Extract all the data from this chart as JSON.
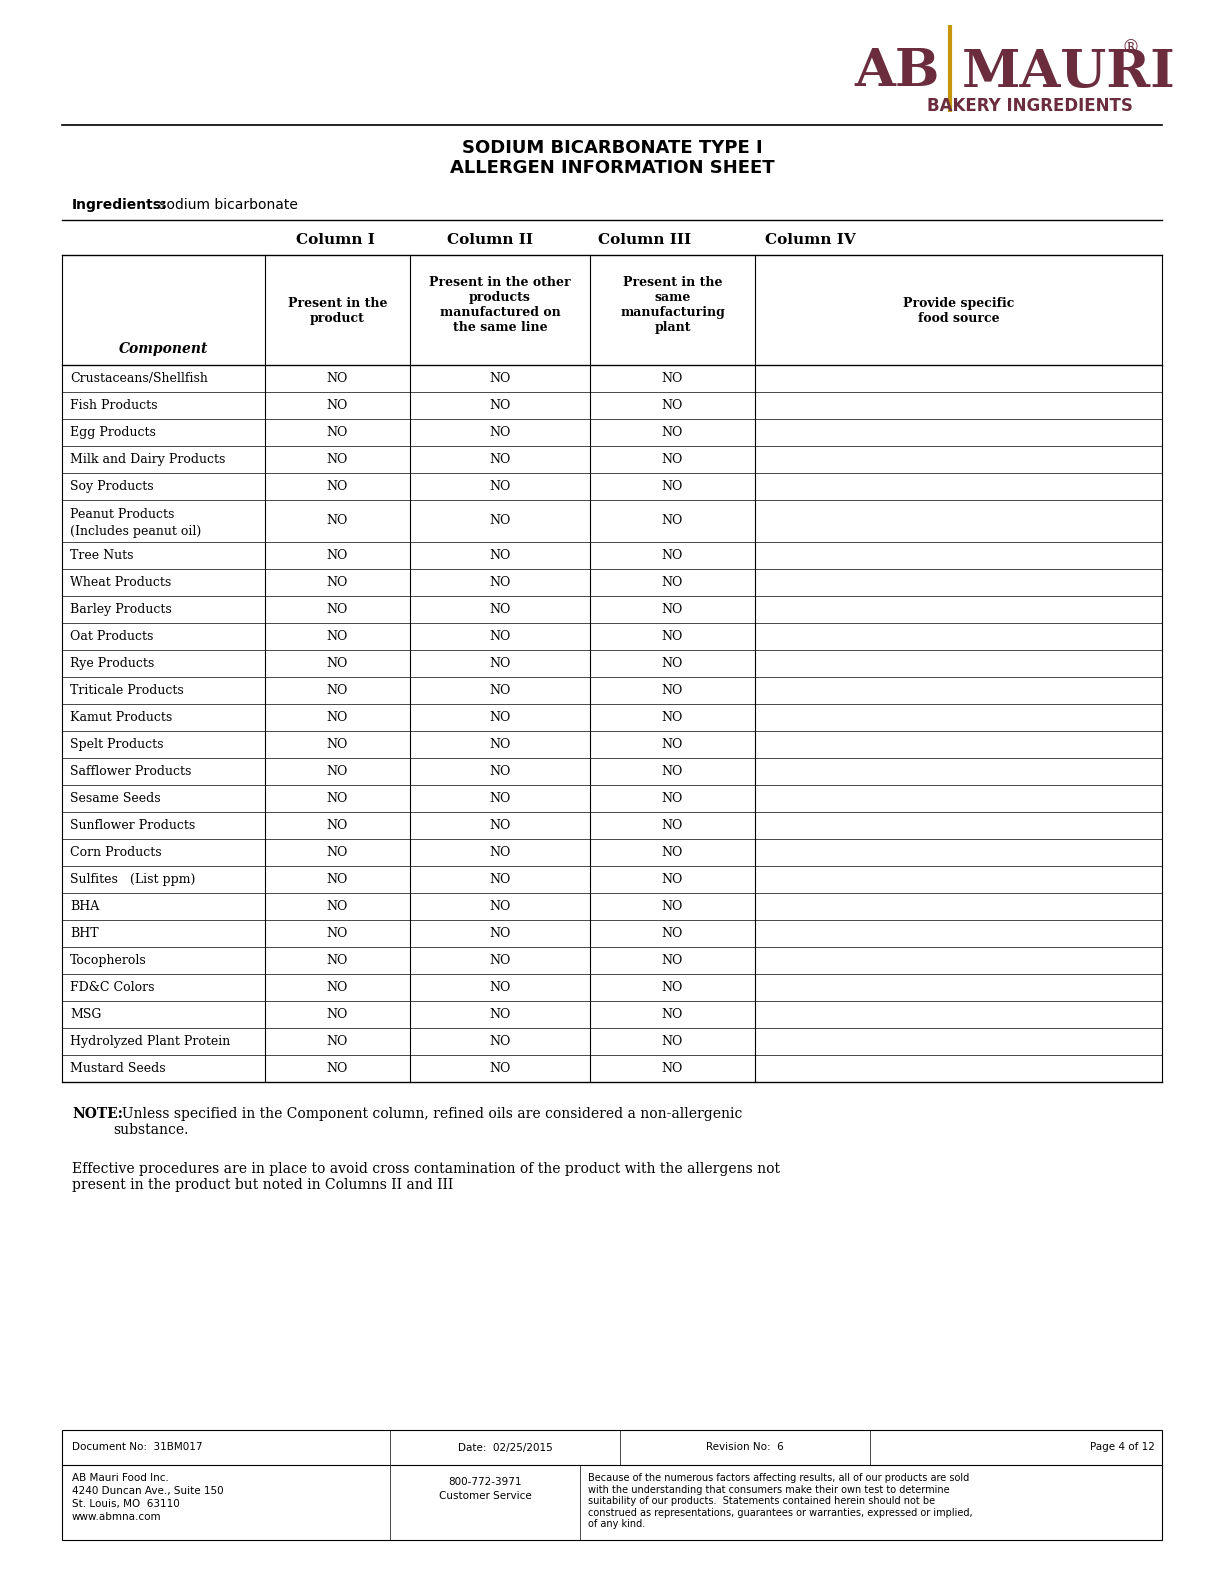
{
  "title_line1": "SODIUM BICARBONATE TYPE I",
  "title_line2": "ALLERGEN INFORMATION SHEET",
  "ingredients_label": "Ingredients:",
  "ingredients_value": " sodium bicarbonate",
  "col_headers": [
    "Column I",
    "Column II",
    "Column III",
    "Column IV"
  ],
  "col_subheaders": [
    "Present in the\nproduct",
    "Present in the other\nproducts\nmanufactured on\nthe same line",
    "Present in the\nsame\nmanufacturing\nplant",
    "Provide specific\nfood source"
  ],
  "component_header": "Component",
  "rows": [
    [
      "Crustaceans/Shellfish",
      "NO",
      "NO",
      "NO",
      ""
    ],
    [
      "Fish Products",
      "NO",
      "NO",
      "NO",
      ""
    ],
    [
      "Egg Products",
      "NO",
      "NO",
      "NO",
      ""
    ],
    [
      "Milk and Dairy Products",
      "NO",
      "NO",
      "NO",
      ""
    ],
    [
      "Soy Products",
      "NO",
      "NO",
      "NO",
      ""
    ],
    [
      "Peanut Products\n(Includes peanut oil)",
      "NO",
      "NO",
      "NO",
      ""
    ],
    [
      "Tree Nuts",
      "NO",
      "NO",
      "NO",
      ""
    ],
    [
      "Wheat Products",
      "NO",
      "NO",
      "NO",
      ""
    ],
    [
      "Barley Products",
      "NO",
      "NO",
      "NO",
      ""
    ],
    [
      "Oat Products",
      "NO",
      "NO",
      "NO",
      ""
    ],
    [
      "Rye Products",
      "NO",
      "NO",
      "NO",
      ""
    ],
    [
      "Triticale Products",
      "NO",
      "NO",
      "NO",
      ""
    ],
    [
      "Kamut Products",
      "NO",
      "NO",
      "NO",
      ""
    ],
    [
      "Spelt Products",
      "NO",
      "NO",
      "NO",
      ""
    ],
    [
      "Safflower Products",
      "NO",
      "NO",
      "NO",
      ""
    ],
    [
      "Sesame Seeds",
      "NO",
      "NO",
      "NO",
      ""
    ],
    [
      "Sunflower Products",
      "NO",
      "NO",
      "NO",
      ""
    ],
    [
      "Corn Products",
      "NO",
      "NO",
      "NO",
      ""
    ],
    [
      "Sulfites   (List ppm)",
      "NO",
      "NO",
      "NO",
      ""
    ],
    [
      "BHA",
      "NO",
      "NO",
      "NO",
      ""
    ],
    [
      "BHT",
      "NO",
      "NO",
      "NO",
      ""
    ],
    [
      "Tocopherols",
      "NO",
      "NO",
      "NO",
      ""
    ],
    [
      "FD&C Colors",
      "NO",
      "NO",
      "NO",
      ""
    ],
    [
      "MSG",
      "NO",
      "NO",
      "NO",
      ""
    ],
    [
      "Hydrolyzed Plant Protein",
      "NO",
      "NO",
      "NO",
      ""
    ],
    [
      "Mustard Seeds",
      "NO",
      "NO",
      "NO",
      ""
    ]
  ],
  "note_bold": "NOTE:",
  "note_text": "  Unless specified in the Component column, refined oils are considered a non-allergenic\nsubstance.",
  "effective_text": "Effective procedures are in place to avoid cross contamination of the product with the allergens not\npresent in the product but noted in Columns II and III",
  "footer_doc": "Document No:  31BM017",
  "footer_date": "Date:  02/25/2015",
  "footer_rev": "Revision No:  6",
  "footer_page": "Page 4 of 12",
  "footer_addr1": "AB Mauri Food Inc.",
  "footer_addr2": "4240 Duncan Ave., Suite 150",
  "footer_addr3": "St. Louis, MO  63110",
  "footer_addr4": "www.abmna.com",
  "footer_phone": "800-772-3971",
  "footer_service": "Customer Service",
  "footer_disclaimer": "Because of the numerous factors affecting results, all of our products are sold\nwith the understanding that consumers make their own test to determine\nsuitability of our products.  Statements contained herein should not be\nconstrued as representations, guarantees or warranties, expressed or implied,\nof any kind.",
  "logo_ab_color": "#6B2D3E",
  "logo_mauri_color": "#6B2D3E",
  "logo_bar_color": "#C8960C",
  "logo_bakery_color": "#6B2D3E",
  "bg_color": "#FFFFFF",
  "text_color": "#000000",
  "table_border_color": "#000000",
  "header_font_size": 11,
  "body_font_size": 9,
  "footer_font_size": 7.5
}
